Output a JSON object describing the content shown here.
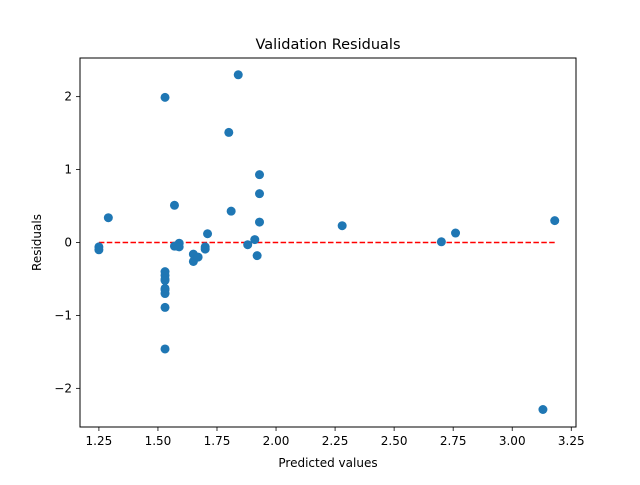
{
  "chart_data": {
    "type": "scatter",
    "title": "Validation Residuals",
    "xlabel": "Predicted values",
    "ylabel": "Residuals",
    "xlim": [
      1.17,
      3.27
    ],
    "ylim": [
      -2.53,
      2.53
    ],
    "xticks": [
      1.25,
      1.5,
      1.75,
      2.0,
      2.25,
      2.5,
      2.75,
      3.0,
      3.25
    ],
    "xtick_labels": [
      "1.25",
      "1.50",
      "1.75",
      "2.00",
      "2.25",
      "2.50",
      "2.75",
      "3.00",
      "3.25"
    ],
    "yticks": [
      -2,
      -1,
      0,
      1,
      2
    ],
    "ytick_labels": [
      "−2",
      "−1",
      "0",
      "1",
      "2"
    ],
    "grid": false,
    "point_color": "#1f77b4",
    "reference_line": {
      "y": 0,
      "x_range": [
        1.25,
        3.18
      ],
      "color": "#ff0000",
      "style": "dashed"
    },
    "x": [
      1.25,
      1.25,
      1.29,
      1.53,
      1.53,
      1.53,
      1.53,
      1.53,
      1.53,
      1.53,
      1.53,
      1.53,
      1.53,
      1.57,
      1.57,
      1.58,
      1.59,
      1.59,
      1.65,
      1.65,
      1.67,
      1.7,
      1.7,
      1.71,
      1.8,
      1.81,
      1.84,
      1.88,
      1.91,
      1.92,
      1.93,
      1.93,
      1.93,
      2.28,
      2.7,
      2.76,
      3.13,
      3.18
    ],
    "y": [
      -0.06,
      -0.1,
      0.34,
      1.99,
      -0.4,
      -0.45,
      -0.5,
      -0.52,
      -0.63,
      -0.65,
      -0.7,
      -0.89,
      -1.46,
      0.51,
      -0.05,
      -0.05,
      -0.01,
      -0.06,
      -0.16,
      -0.26,
      -0.2,
      -0.06,
      -0.09,
      0.12,
      1.51,
      0.43,
      2.3,
      -0.03,
      0.04,
      -0.18,
      0.93,
      0.67,
      0.28,
      0.23,
      0.01,
      0.13,
      -2.29,
      0.3
    ]
  }
}
